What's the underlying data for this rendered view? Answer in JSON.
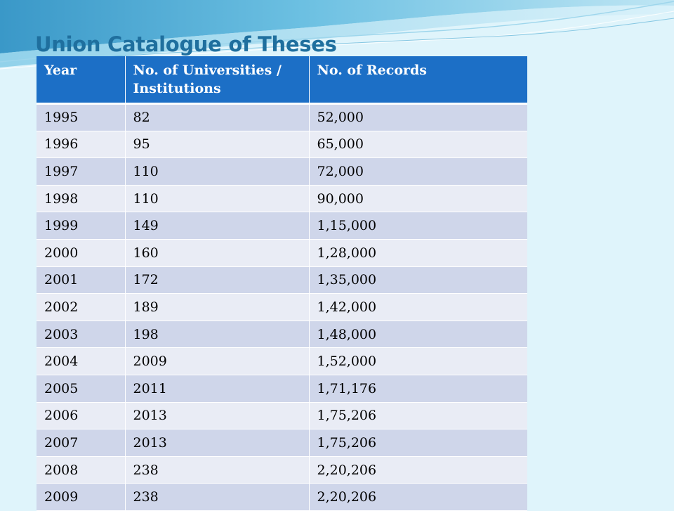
{
  "slide": {
    "title": "Union Catalogue of Theses"
  },
  "table": {
    "headers": [
      "Year",
      "No. of Universities / Institutions",
      "No. of Records"
    ],
    "rows": [
      [
        "1995",
        "82",
        "52,000"
      ],
      [
        "1996",
        "95",
        "65,000"
      ],
      [
        "1997",
        "110",
        "72,000"
      ],
      [
        "1998",
        "110",
        "90,000"
      ],
      [
        "1999",
        "149",
        "1,15,000"
      ],
      [
        "2000",
        "160",
        "1,28,000"
      ],
      [
        "2001",
        "172",
        "1,35,000"
      ],
      [
        "2002",
        "189",
        "1,42,000"
      ],
      [
        "2003",
        "198",
        "1,48,000"
      ],
      [
        "2004",
        "2009",
        "1,52,000"
      ],
      [
        "2005",
        "2011",
        "1,71,176"
      ],
      [
        "2006",
        "2013",
        "1,75,206"
      ],
      [
        "2007",
        "2013",
        "1,75,206"
      ],
      [
        "2008",
        "238",
        "2,20,206"
      ],
      [
        "2009",
        "238",
        "2,20,206"
      ]
    ]
  },
  "colors": {
    "background": "#dff4fb",
    "title": "#1f6f9e",
    "header_fill": "#1c6fc6",
    "row_dark": "#cfd6ea",
    "row_light": "#e9ecf5"
  }
}
